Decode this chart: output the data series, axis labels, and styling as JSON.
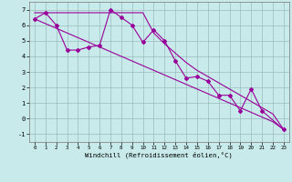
{
  "x": [
    0,
    1,
    2,
    3,
    4,
    5,
    6,
    7,
    8,
    9,
    10,
    11,
    12,
    13,
    14,
    15,
    16,
    17,
    18,
    19,
    20,
    21,
    22,
    23
  ],
  "y_main": [
    6.4,
    6.8,
    6.0,
    4.4,
    4.4,
    4.6,
    4.7,
    7.0,
    6.5,
    6.0,
    4.9,
    5.7,
    5.0,
    3.7,
    2.6,
    2.7,
    2.4,
    1.5,
    1.5,
    0.5,
    1.9,
    0.5,
    null,
    -0.7
  ],
  "y_flat_then_drop": [
    6.8,
    6.8,
    6.8,
    6.8,
    6.8,
    6.8,
    6.8,
    6.8,
    6.8,
    6.8,
    6.8,
    5.5,
    4.8,
    4.2,
    3.6,
    3.1,
    2.7,
    2.3,
    1.9,
    1.5,
    1.1,
    0.7,
    0.3,
    -0.7
  ],
  "y_diagonal": [
    6.4,
    6.1,
    5.8,
    5.5,
    5.2,
    4.9,
    4.6,
    4.3,
    4.0,
    3.7,
    3.4,
    3.1,
    2.8,
    2.5,
    2.2,
    1.9,
    1.6,
    1.3,
    1.0,
    0.7,
    0.4,
    0.1,
    -0.2,
    -0.7
  ],
  "background_color": "#c8eaea",
  "grid_color": "#9bbcbc",
  "line_color": "#990099",
  "xlabel": "Windchill (Refroidissement éolien,°C)",
  "ylim": [
    -1.5,
    7.5
  ],
  "xlim": [
    -0.5,
    23.5
  ],
  "yticks": [
    -1,
    0,
    1,
    2,
    3,
    4,
    5,
    6,
    7
  ],
  "xticks": [
    0,
    1,
    2,
    3,
    4,
    5,
    6,
    7,
    8,
    9,
    10,
    11,
    12,
    13,
    14,
    15,
    16,
    17,
    18,
    19,
    20,
    21,
    22,
    23
  ]
}
